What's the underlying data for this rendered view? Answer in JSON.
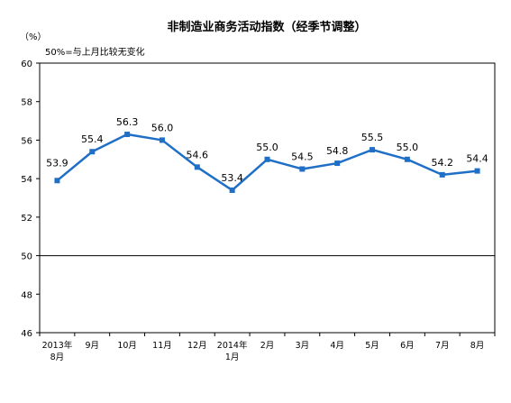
{
  "chart_data": {
    "type": "line",
    "title": "非制造业商务活动指数（经季节调整）",
    "unit": "（%）",
    "note": "50%=与上月比较无变化",
    "reference_value": 50,
    "ylim": [
      46,
      60
    ],
    "yticks": [
      "60",
      "58",
      "56",
      "54",
      "52",
      "50",
      "48",
      "46"
    ],
    "categories": [
      [
        "2013年",
        "8月"
      ],
      [
        "9月"
      ],
      [
        "10月"
      ],
      [
        "11月"
      ],
      [
        "12月"
      ],
      [
        "2014年",
        "1月"
      ],
      [
        "2月"
      ],
      [
        "3月"
      ],
      [
        "4月"
      ],
      [
        "5月"
      ],
      [
        "6月"
      ],
      [
        "7月"
      ],
      [
        "8月"
      ]
    ],
    "values": [
      53.9,
      55.4,
      56.3,
      56.0,
      54.6,
      53.4,
      55.0,
      54.5,
      54.8,
      55.5,
      55.0,
      54.2,
      54.4
    ],
    "data_labels": [
      "53.9",
      "55.4",
      "56.3",
      "56.0",
      "54.6",
      "53.4",
      "55.0",
      "54.5",
      "54.8",
      "55.5",
      "55.0",
      "54.2",
      "54.4"
    ],
    "line_color": "#1f6fc6",
    "grid": false
  }
}
